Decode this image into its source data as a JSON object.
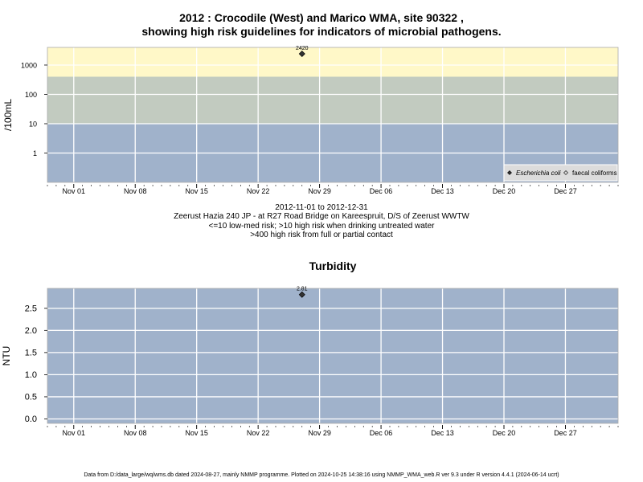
{
  "title_line1": "2012 : Crocodile (West) and Marico WMA, site 90322 ,",
  "title_line2": "showing high risk guidelines for indicators of microbial pathogens.",
  "caption": {
    "date_range": "2012-11-01 to 2012-12-31",
    "site_desc": "Zeerust Hazia 240 JP - at R27 Road Bridge on Kareespruit, D/S of Zeerust WWTW",
    "risk_note1": "<=10 low-med risk; >10 high risk when drinking untreated water",
    "risk_note2": ">400 high risk from full or partial contact"
  },
  "footer": "Data from D:/data_large/wq/wms.db dated 2024-08-27, mainly NMMP programme. Plotted on 2024-10-25 14:38:16 using NMMP_WMA_web.R ver 9.3 under R version 4.4.1 (2024-06-14 ucrt)",
  "colors": {
    "band_low": "#a0b2cb",
    "band_mid": "#c2cbc0",
    "band_high": "#fff8c8",
    "grid": "#ffffff",
    "point": "#333333",
    "legend_bg": "#dcdcdc"
  },
  "chart_data": [
    {
      "type": "scatter",
      "title": "",
      "ylabel": "/100mL",
      "y_scale": "log",
      "ylim": [
        0.1,
        4000
      ],
      "xlim": [
        "2012-10-29",
        "2013-01-02"
      ],
      "x_ticks": [
        "Nov 01",
        "Nov 08",
        "Nov 15",
        "Nov 22",
        "Nov 29",
        "Dec 06",
        "Dec 13",
        "Dec 20",
        "Dec 27"
      ],
      "x_tick_dates": [
        "2012-11-01",
        "2012-11-08",
        "2012-11-15",
        "2012-11-22",
        "2012-11-29",
        "2012-12-06",
        "2012-12-13",
        "2012-12-20",
        "2012-12-27"
      ],
      "y_ticks": [
        1,
        10,
        100,
        1000
      ],
      "y_tick_labels": [
        "1",
        "10",
        "100",
        "1000"
      ],
      "bands": [
        {
          "from": 0.1,
          "to": 10,
          "color": "#a0b2cb"
        },
        {
          "from": 10,
          "to": 400,
          "color": "#c2cbc0"
        },
        {
          "from": 400,
          "to": 4000,
          "color": "#fff8c8"
        }
      ],
      "series": [
        {
          "name": "Escherichia coli",
          "marker": "filled-diamond",
          "points": [
            {
              "x": "2012-11-27",
              "y": 2420,
              "label": "2420"
            }
          ]
        },
        {
          "name": "faecal coliforms",
          "marker": "open-diamond",
          "points": []
        }
      ],
      "legend": "bottom-right",
      "grid": true
    },
    {
      "type": "scatter",
      "title": "Turbidity",
      "ylabel": "NTU",
      "ylim": [
        -0.1,
        2.95
      ],
      "xlim": [
        "2012-10-29",
        "2013-01-02"
      ],
      "x_ticks": [
        "Nov 01",
        "Nov 08",
        "Nov 15",
        "Nov 22",
        "Nov 29",
        "Dec 06",
        "Dec 13",
        "Dec 20",
        "Dec 27"
      ],
      "x_tick_dates": [
        "2012-11-01",
        "2012-11-08",
        "2012-11-15",
        "2012-11-22",
        "2012-11-29",
        "2012-12-06",
        "2012-12-13",
        "2012-12-20",
        "2012-12-27"
      ],
      "y_ticks": [
        0,
        0.5,
        1,
        1.5,
        2,
        2.5
      ],
      "y_tick_labels": [
        "0.0",
        "0.5",
        "1.0",
        "1.5",
        "2.0",
        "2.5"
      ],
      "series": [
        {
          "name": "",
          "marker": "filled-diamond",
          "points": [
            {
              "x": "2012-11-27",
              "y": 2.81,
              "label": "2.81"
            }
          ]
        }
      ],
      "grid": true
    }
  ]
}
